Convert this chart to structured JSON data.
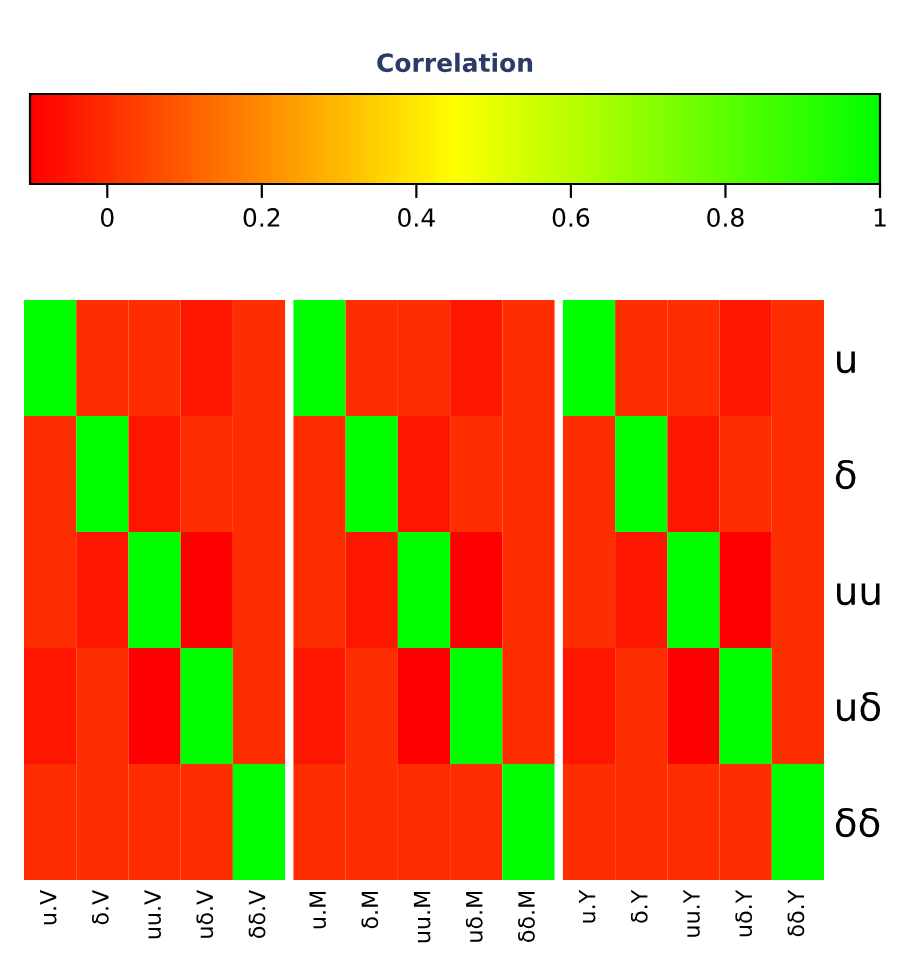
{
  "chart_data": {
    "type": "heatmap",
    "clabel": "Correlation",
    "clim": [
      -0.1,
      1
    ],
    "cticks": [
      0,
      0.2,
      0.4,
      0.6,
      0.8,
      1
    ],
    "categories": [
      "u.V",
      "δ.V",
      "uu.V",
      "uδ.V",
      "δδ.V",
      null,
      "u.M",
      "δ.M",
      "uu.M",
      "uδ.M",
      "δδ.M",
      null,
      "u.Y",
      "δ.Y",
      "uu.Y",
      "uδ.Y",
      "δδ.Y"
    ],
    "y_categories": [
      "u",
      "δ",
      "uu",
      "uδ",
      "δδ"
    ],
    "cells": [
      [
        1,
        0,
        0,
        -0.05,
        0,
        null,
        1,
        0,
        0,
        -0.05,
        0,
        null,
        1,
        0,
        0,
        -0.05,
        0
      ],
      [
        0,
        1,
        -0.05,
        0,
        0,
        null,
        0,
        1,
        -0.05,
        0,
        0,
        null,
        0,
        1,
        -0.05,
        0,
        0
      ],
      [
        0,
        -0.05,
        1,
        -0.1,
        0,
        null,
        0,
        -0.05,
        1,
        -0.1,
        0,
        null,
        0,
        -0.05,
        1,
        -0.1,
        0
      ],
      [
        -0.05,
        0,
        -0.1,
        1,
        0,
        null,
        -0.05,
        0,
        -0.1,
        1,
        0,
        null,
        -0.05,
        0,
        -0.1,
        1,
        0
      ],
      [
        0,
        0,
        0,
        0,
        1,
        null,
        0,
        0,
        0,
        0,
        1,
        null,
        0,
        0,
        0,
        0,
        1
      ]
    ]
  }
}
